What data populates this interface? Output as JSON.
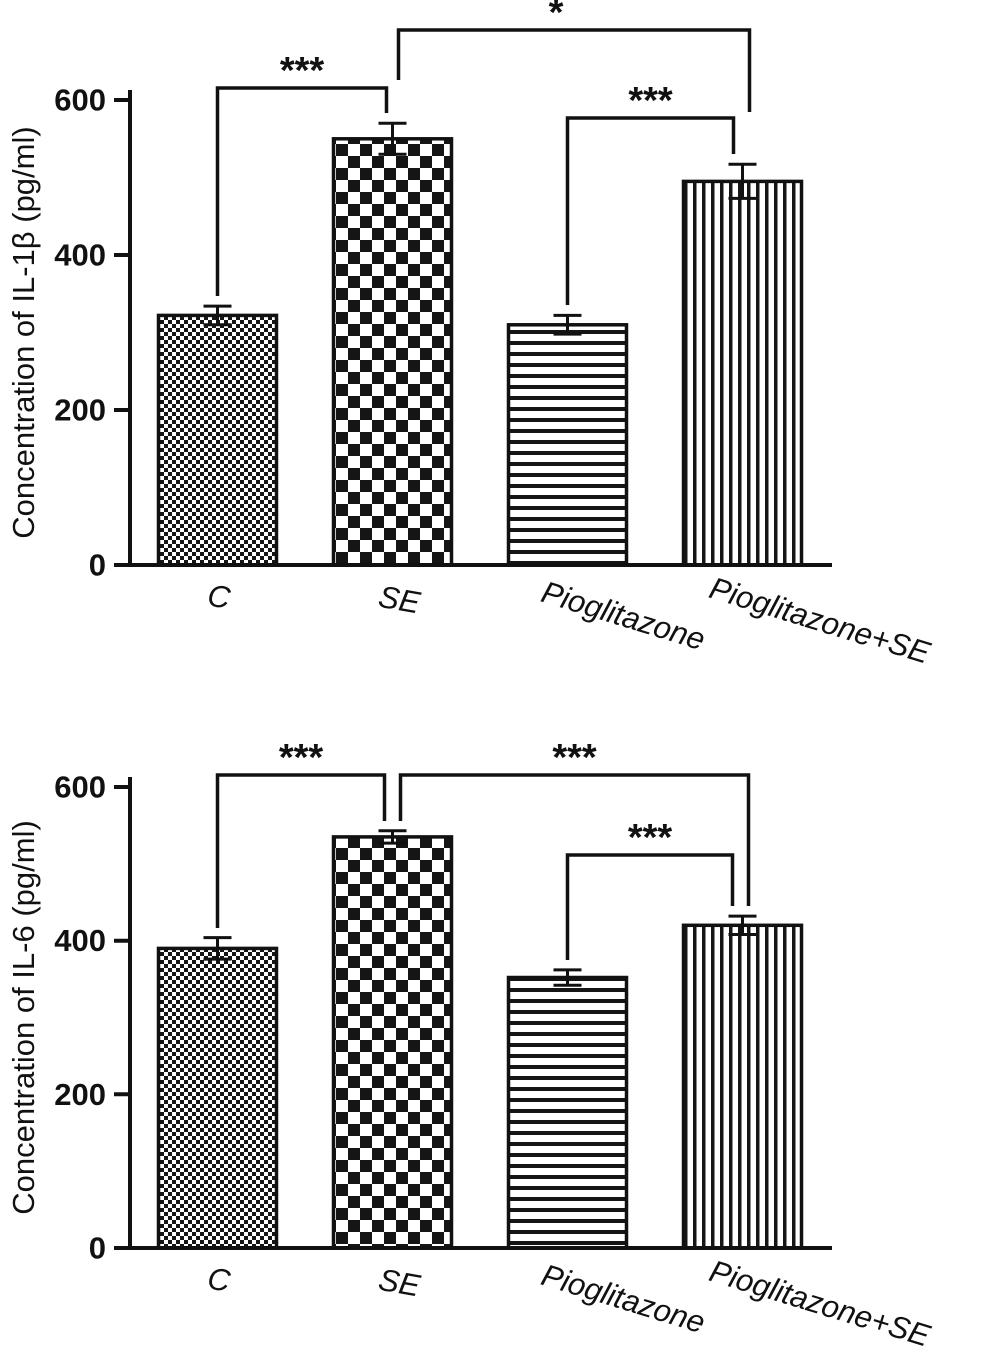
{
  "figure": {
    "background": "#ffffff",
    "ink": "#111111"
  },
  "chart_data": [
    {
      "type": "bar",
      "title": "",
      "ylabel": "Concentration of IL-1β (pg/ml)",
      "xlabel": "",
      "ylim": [
        0,
        600
      ],
      "yticks": [
        0,
        200,
        400,
        600
      ],
      "grid": false,
      "legend": null,
      "categories": [
        "C",
        "SE",
        "Pioglitazone",
        "Pioglitazone+SE"
      ],
      "values": [
        322,
        550,
        310,
        495
      ],
      "errors": [
        12,
        20,
        12,
        22
      ],
      "bar_patterns": [
        "small-check",
        "large-check",
        "horizontal-stripes",
        "vertical-stripes"
      ],
      "significance": [
        {
          "from": "C",
          "to": "SE",
          "from_index": 0,
          "to_index": 1,
          "label": "***"
        },
        {
          "from": "Pioglitazone",
          "to": "Pioglitazone+SE",
          "from_index": 2,
          "to_index": 3,
          "label": "***"
        },
        {
          "from": "SE",
          "to": "Pioglitazone+SE",
          "from_index": 1,
          "to_index": 3,
          "label": "*"
        }
      ]
    },
    {
      "type": "bar",
      "title": "",
      "ylabel": "Concentration of IL-6 (pg/ml)",
      "xlabel": "",
      "ylim": [
        0,
        600
      ],
      "yticks": [
        0,
        200,
        400,
        600
      ],
      "grid": false,
      "legend": null,
      "categories": [
        "C",
        "SE",
        "Pioglitazone",
        "Pioglitazone+SE"
      ],
      "values": [
        390,
        535,
        352,
        420
      ],
      "errors": [
        14,
        8,
        10,
        12
      ],
      "bar_patterns": [
        "small-check",
        "large-check",
        "horizontal-stripes",
        "vertical-stripes"
      ],
      "significance": [
        {
          "from": "C",
          "to": "SE",
          "from_index": 0,
          "to_index": 1,
          "label": "***"
        },
        {
          "from": "SE",
          "to": "Pioglitazone+SE",
          "from_index": 1,
          "to_index": 3,
          "label": "***"
        },
        {
          "from": "Pioglitazone",
          "to": "Pioglitazone+SE",
          "from_index": 2,
          "to_index": 3,
          "label": "***"
        }
      ]
    }
  ]
}
